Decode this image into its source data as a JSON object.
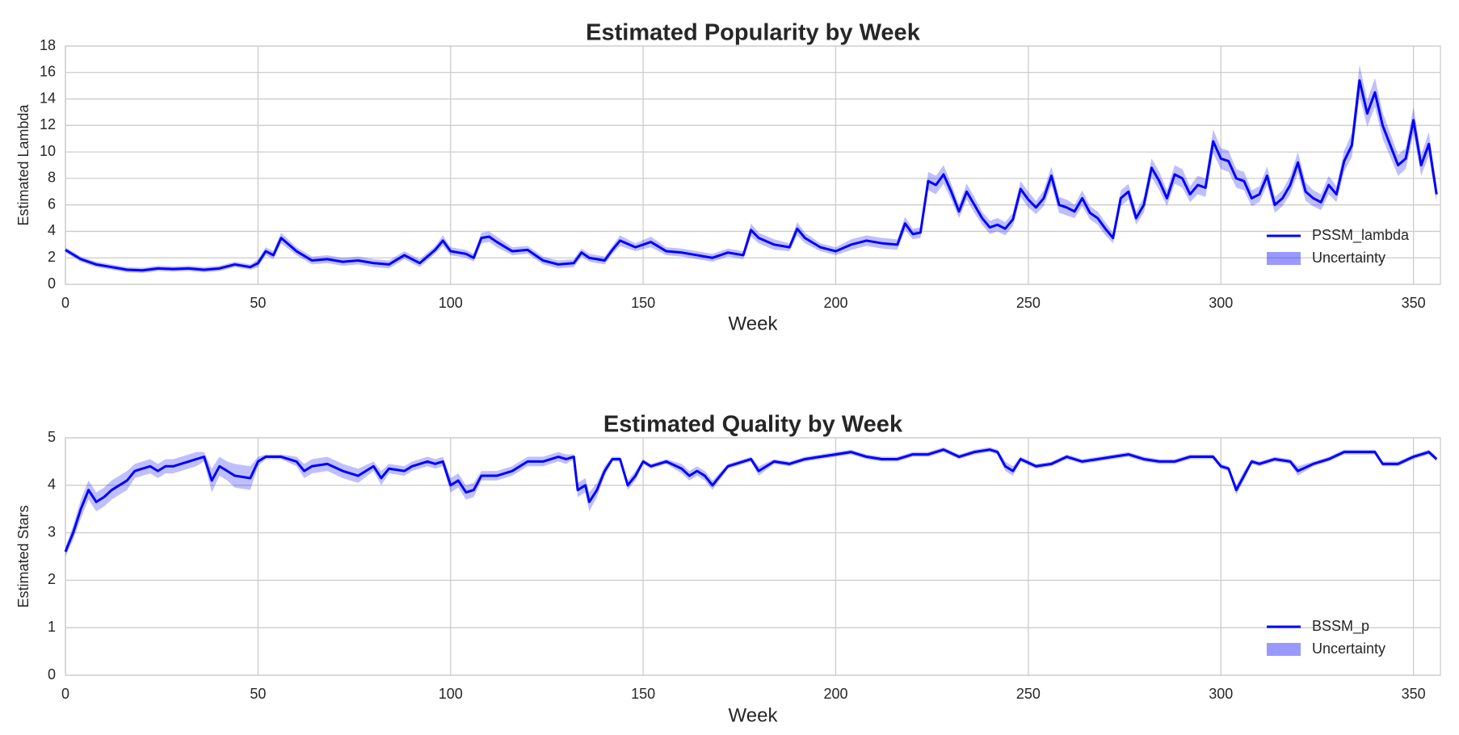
{
  "chart_data": [
    {
      "type": "line",
      "title": "Estimated Popularity by Week",
      "x_label": "Week",
      "y_label": "Estimated Lambda",
      "x": [
        0,
        4,
        8,
        12,
        16,
        20,
        24,
        28,
        32,
        36,
        40,
        44,
        48,
        50,
        52,
        54,
        56,
        60,
        64,
        68,
        72,
        76,
        80,
        84,
        88,
        92,
        96,
        98,
        100,
        104,
        106,
        108,
        110,
        112,
        116,
        120,
        124,
        128,
        132,
        134,
        136,
        140,
        142,
        144,
        148,
        152,
        156,
        160,
        164,
        168,
        172,
        176,
        178,
        180,
        184,
        188,
        190,
        192,
        196,
        200,
        204,
        208,
        212,
        216,
        218,
        220,
        222,
        224,
        226,
        228,
        230,
        232,
        234,
        236,
        238,
        240,
        242,
        244,
        246,
        248,
        250,
        252,
        254,
        256,
        258,
        260,
        262,
        264,
        266,
        268,
        270,
        272,
        274,
        276,
        278,
        280,
        282,
        284,
        286,
        288,
        290,
        292,
        294,
        296,
        298,
        300,
        302,
        304,
        306,
        308,
        310,
        312,
        314,
        316,
        318,
        320,
        322,
        324,
        326,
        328,
        330,
        332,
        334,
        336,
        338,
        340,
        342,
        344,
        346,
        348,
        350,
        352,
        354,
        356
      ],
      "series": [
        {
          "name": "PSSM_lambda",
          "color": "#0000ff",
          "values": [
            2.6,
            1.9,
            1.5,
            1.3,
            1.1,
            1.05,
            1.2,
            1.15,
            1.2,
            1.1,
            1.2,
            1.5,
            1.3,
            1.6,
            2.5,
            2.2,
            3.5,
            2.5,
            1.8,
            1.9,
            1.7,
            1.8,
            1.6,
            1.5,
            2.2,
            1.6,
            2.6,
            3.3,
            2.5,
            2.3,
            2.0,
            3.5,
            3.6,
            3.2,
            2.5,
            2.6,
            1.8,
            1.5,
            1.6,
            2.4,
            2.0,
            1.8,
            2.6,
            3.3,
            2.8,
            3.2,
            2.5,
            2.4,
            2.2,
            2.0,
            2.4,
            2.2,
            4.1,
            3.5,
            3.0,
            2.8,
            4.2,
            3.5,
            2.8,
            2.5,
            3.0,
            3.3,
            3.1,
            3.0,
            4.6,
            3.8,
            3.9,
            7.8,
            7.5,
            8.3,
            7.0,
            5.5,
            7.0,
            6.0,
            5.0,
            4.3,
            4.5,
            4.2,
            4.9,
            7.2,
            6.4,
            5.8,
            6.5,
            8.2,
            6.0,
            5.8,
            5.5,
            6.5,
            5.4,
            5.0,
            4.2,
            3.5,
            6.5,
            7.0,
            5.0,
            6.0,
            8.8,
            7.8,
            6.5,
            8.3,
            8.0,
            6.8,
            7.5,
            7.3,
            10.8,
            9.5,
            9.3,
            8.0,
            7.8,
            6.5,
            6.8,
            8.2,
            6.0,
            6.5,
            7.5,
            9.2,
            7.0,
            6.5,
            6.2,
            7.5,
            6.8,
            9.3,
            10.5,
            15.4,
            12.9,
            14.5,
            12.0,
            10.5,
            9.0,
            9.5,
            12.4,
            9.0,
            10.6,
            6.8
          ],
          "error": [
            0.2,
            0.2,
            0.2,
            0.2,
            0.2,
            0.2,
            0.2,
            0.2,
            0.2,
            0.2,
            0.2,
            0.2,
            0.2,
            0.3,
            0.3,
            0.3,
            0.4,
            0.3,
            0.3,
            0.3,
            0.3,
            0.3,
            0.3,
            0.3,
            0.3,
            0.3,
            0.3,
            0.4,
            0.3,
            0.3,
            0.3,
            0.4,
            0.4,
            0.4,
            0.3,
            0.3,
            0.3,
            0.3,
            0.3,
            0.3,
            0.3,
            0.3,
            0.3,
            0.4,
            0.3,
            0.4,
            0.3,
            0.3,
            0.3,
            0.3,
            0.3,
            0.3,
            0.5,
            0.4,
            0.4,
            0.3,
            0.5,
            0.4,
            0.3,
            0.3,
            0.4,
            0.4,
            0.4,
            0.4,
            0.5,
            0.4,
            0.4,
            0.7,
            0.7,
            0.7,
            0.6,
            0.5,
            0.6,
            0.6,
            0.5,
            0.5,
            0.5,
            0.5,
            0.5,
            0.6,
            0.6,
            0.5,
            0.6,
            0.7,
            0.6,
            0.6,
            0.5,
            0.6,
            0.5,
            0.5,
            0.5,
            0.4,
            0.6,
            0.6,
            0.5,
            0.6,
            0.7,
            0.7,
            0.6,
            0.7,
            0.7,
            0.6,
            0.7,
            0.7,
            0.9,
            0.8,
            0.8,
            0.7,
            0.7,
            0.6,
            0.6,
            0.7,
            0.6,
            0.6,
            0.7,
            0.8,
            0.7,
            0.6,
            0.6,
            0.7,
            0.6,
            0.8,
            0.9,
            1.2,
            1.0,
            1.1,
            1.0,
            0.9,
            0.8,
            0.8,
            1.0,
            0.8,
            0.9,
            0.6
          ]
        }
      ],
      "band_label": "Uncertainty",
      "band_color": "#0000ff",
      "xlim": [
        0,
        357
      ],
      "ylim": [
        0,
        18
      ],
      "xticks": [
        0,
        50,
        100,
        150,
        200,
        250,
        300,
        350
      ],
      "yticks": [
        0,
        2,
        4,
        6,
        8,
        10,
        12,
        14,
        16,
        18
      ],
      "grid": true,
      "legend": "lower right"
    },
    {
      "type": "line",
      "title": "Estimated Quality by Week",
      "x_label": "Week",
      "y_label": "Estimated Stars",
      "x": [
        0,
        2,
        4,
        6,
        8,
        10,
        12,
        14,
        16,
        18,
        20,
        22,
        24,
        26,
        28,
        30,
        32,
        34,
        36,
        38,
        40,
        42,
        44,
        48,
        50,
        52,
        56,
        60,
        62,
        64,
        68,
        72,
        76,
        80,
        82,
        84,
        88,
        90,
        94,
        96,
        98,
        100,
        102,
        104,
        106,
        108,
        112,
        116,
        120,
        124,
        128,
        130,
        132,
        133,
        135,
        136,
        138,
        140,
        142,
        144,
        146,
        148,
        150,
        152,
        156,
        160,
        162,
        164,
        166,
        168,
        172,
        176,
        178,
        180,
        184,
        188,
        192,
        196,
        200,
        204,
        208,
        212,
        216,
        220,
        224,
        228,
        232,
        236,
        240,
        242,
        244,
        246,
        248,
        252,
        256,
        260,
        264,
        268,
        272,
        276,
        280,
        284,
        288,
        292,
        296,
        298,
        300,
        302,
        304,
        306,
        308,
        310,
        314,
        318,
        320,
        324,
        328,
        332,
        336,
        340,
        342,
        346,
        350,
        354,
        356
      ],
      "series": [
        {
          "name": "BSSM_p",
          "color": "#0000ff",
          "values": [
            2.6,
            3.0,
            3.5,
            3.9,
            3.65,
            3.75,
            3.9,
            4.0,
            4.1,
            4.3,
            4.35,
            4.4,
            4.3,
            4.4,
            4.4,
            4.45,
            4.5,
            4.55,
            4.6,
            4.1,
            4.4,
            4.3,
            4.2,
            4.15,
            4.5,
            4.6,
            4.6,
            4.5,
            4.3,
            4.4,
            4.45,
            4.3,
            4.2,
            4.4,
            4.15,
            4.35,
            4.3,
            4.4,
            4.5,
            4.45,
            4.5,
            4.0,
            4.1,
            3.85,
            3.9,
            4.2,
            4.2,
            4.3,
            4.5,
            4.5,
            4.6,
            4.55,
            4.6,
            3.9,
            4.0,
            3.65,
            3.9,
            4.3,
            4.55,
            4.55,
            4.0,
            4.2,
            4.5,
            4.4,
            4.5,
            4.35,
            4.2,
            4.3,
            4.2,
            4.0,
            4.4,
            4.5,
            4.55,
            4.3,
            4.5,
            4.45,
            4.55,
            4.6,
            4.65,
            4.7,
            4.6,
            4.55,
            4.55,
            4.65,
            4.65,
            4.75,
            4.6,
            4.7,
            4.75,
            4.7,
            4.4,
            4.3,
            4.55,
            4.4,
            4.45,
            4.6,
            4.5,
            4.55,
            4.6,
            4.65,
            4.55,
            4.5,
            4.5,
            4.6,
            4.6,
            4.6,
            4.4,
            4.35,
            3.9,
            4.2,
            4.5,
            4.45,
            4.55,
            4.5,
            4.3,
            4.45,
            4.55,
            4.7,
            4.7,
            4.7,
            4.45,
            4.45,
            4.6,
            4.7,
            4.55
          ],
          "error": [
            0.1,
            0.15,
            0.2,
            0.2,
            0.2,
            0.2,
            0.2,
            0.2,
            0.2,
            0.15,
            0.15,
            0.15,
            0.15,
            0.15,
            0.15,
            0.15,
            0.15,
            0.15,
            0.1,
            0.25,
            0.2,
            0.2,
            0.25,
            0.25,
            0.1,
            0.05,
            0.05,
            0.1,
            0.15,
            0.15,
            0.15,
            0.15,
            0.15,
            0.1,
            0.15,
            0.1,
            0.1,
            0.1,
            0.1,
            0.1,
            0.1,
            0.15,
            0.15,
            0.15,
            0.15,
            0.1,
            0.1,
            0.1,
            0.1,
            0.1,
            0.1,
            0.1,
            0.05,
            0.15,
            0.15,
            0.2,
            0.15,
            0.1,
            0.05,
            0.05,
            0.1,
            0.1,
            0.05,
            0.05,
            0.05,
            0.1,
            0.1,
            0.1,
            0.1,
            0.1,
            0.05,
            0.05,
            0.05,
            0.1,
            0.05,
            0.05,
            0.05,
            0.05,
            0.05,
            0.05,
            0.05,
            0.05,
            0.05,
            0.05,
            0.05,
            0.05,
            0.05,
            0.05,
            0.05,
            0.05,
            0.1,
            0.1,
            0.05,
            0.05,
            0.05,
            0.05,
            0.05,
            0.05,
            0.05,
            0.05,
            0.05,
            0.05,
            0.05,
            0.05,
            0.05,
            0.05,
            0.05,
            0.05,
            0.1,
            0.1,
            0.05,
            0.05,
            0.05,
            0.05,
            0.1,
            0.05,
            0.05,
            0.05,
            0.05,
            0.05,
            0.05,
            0.05,
            0.05,
            0.05,
            0.05
          ]
        }
      ],
      "band_label": "Uncertainty",
      "band_color": "#0000ff",
      "xlim": [
        0,
        357
      ],
      "ylim": [
        0,
        5
      ],
      "xticks": [
        0,
        50,
        100,
        150,
        200,
        250,
        300,
        350
      ],
      "yticks": [
        0,
        1,
        2,
        3,
        4,
        5
      ],
      "grid": true,
      "legend": "lower right"
    }
  ]
}
